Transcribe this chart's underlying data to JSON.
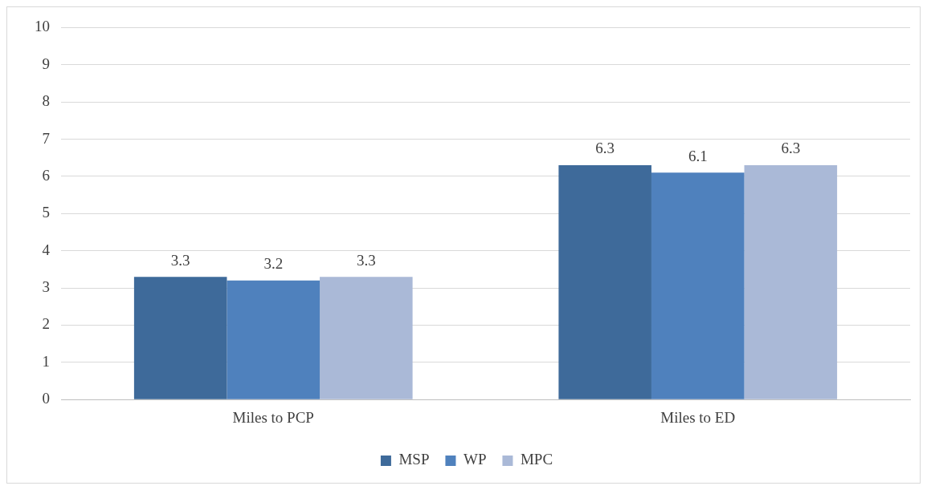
{
  "chart_data": {
    "type": "bar",
    "categories": [
      "Miles to PCP",
      "Miles to ED"
    ],
    "series": [
      {
        "name": "MSP",
        "color": "#3e6a9a",
        "values": [
          3.3,
          6.3
        ]
      },
      {
        "name": "WP",
        "color": "#4f81bd",
        "values": [
          3.2,
          6.1
        ]
      },
      {
        "name": "MPC",
        "color": "#aab9d7",
        "values": [
          3.3,
          6.3
        ]
      }
    ],
    "ylim": [
      0,
      10
    ],
    "yticks": [
      0,
      1,
      2,
      3,
      4,
      5,
      6,
      7,
      8,
      9,
      10
    ],
    "grid": "y",
    "legend": "bottom",
    "data_labels": true
  }
}
